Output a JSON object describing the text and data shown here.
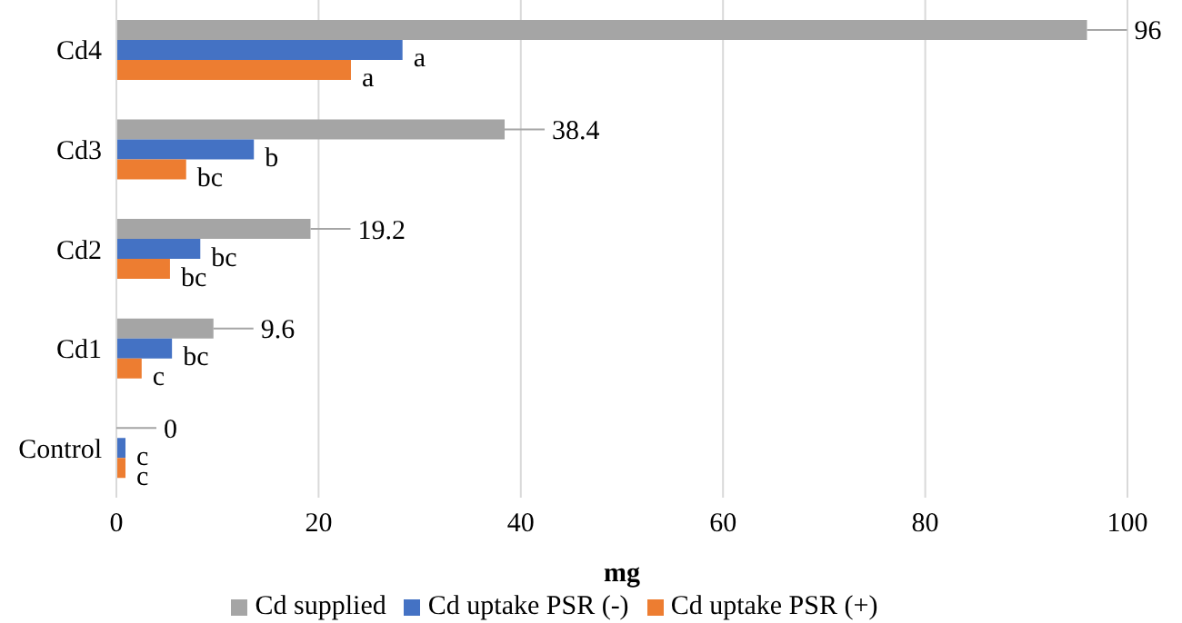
{
  "chart_data": {
    "type": "bar",
    "orientation": "horizontal",
    "xlabel": "mg",
    "categories": [
      "Cd4",
      "Cd3",
      "Cd2",
      "Cd1",
      "Control"
    ],
    "series": [
      {
        "name": "Cd supplied",
        "color": "#a5a5a5",
        "values": [
          96,
          38.4,
          19.2,
          9.6,
          0
        ],
        "value_labels": [
          "96",
          "38.4",
          "19.2",
          "9.6",
          "0"
        ]
      },
      {
        "name": "Cd uptake PSR (-)",
        "color": "#4472c4",
        "values": [
          28.3,
          13.6,
          8.3,
          5.5,
          0.9
        ],
        "value_labels": [
          "a",
          "b",
          "bc",
          "bc",
          "c"
        ]
      },
      {
        "name": "Cd uptake PSR (+)",
        "color": "#ed7d31",
        "values": [
          23.2,
          6.9,
          5.3,
          2.5,
          0.9
        ],
        "value_labels": [
          "a",
          "bc",
          "bc",
          "c",
          "c"
        ]
      }
    ],
    "xlim": [
      0,
      100
    ],
    "xticks": [
      0,
      20,
      40,
      60,
      80,
      100
    ],
    "grid": "x",
    "legend": "bottom"
  }
}
